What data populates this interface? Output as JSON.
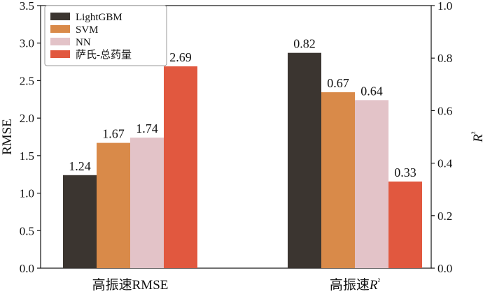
{
  "chart_data": {
    "type": "bar",
    "groups": [
      "高振速RMSE",
      "高振速"
    ],
    "group_label_suffix": [
      "",
      "R²"
    ],
    "series": [
      {
        "name": "LightGBM",
        "color": "#3b3530",
        "values": [
          1.24,
          0.82
        ]
      },
      {
        "name": "SVM",
        "color": "#d98a49",
        "values": [
          1.67,
          0.67
        ]
      },
      {
        "name": "NN",
        "color": "#e3c3c8",
        "values": [
          1.74,
          0.64
        ]
      },
      {
        "name": "萨氏-总药量",
        "color": "#e1583f",
        "values": [
          2.69,
          0.33
        ]
      }
    ],
    "value_labels": [
      [
        "1.24",
        "1.67",
        "1.74",
        "2.69"
      ],
      [
        "0.82",
        "0.67",
        "0.64",
        "0.33"
      ]
    ],
    "group_axis": [
      "left",
      "right"
    ],
    "left_axis": {
      "label": "RMSE",
      "ylim": [
        0,
        3.5
      ],
      "ticks": [
        "0.0",
        "0.5",
        "1.0",
        "1.5",
        "2.0",
        "2.5",
        "3.0",
        "3.5"
      ]
    },
    "right_axis": {
      "label": "R²",
      "ylim": [
        0,
        1.0
      ],
      "ticks": [
        "0.0",
        "0.2",
        "0.4",
        "0.6",
        "0.8",
        "1.0"
      ]
    },
    "legend_position": "top-left",
    "grid": false
  }
}
